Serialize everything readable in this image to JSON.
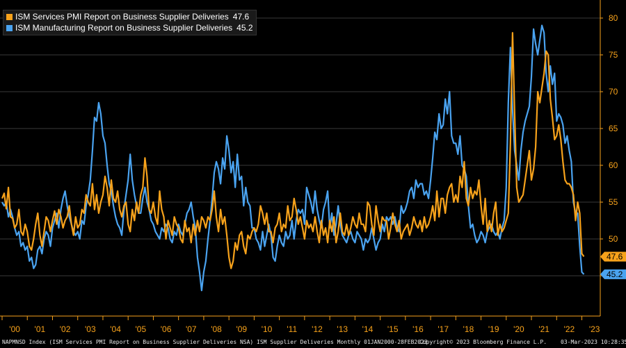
{
  "legend": [
    {
      "name": "ISM Services PMI Report on Business Supplier Deliveries",
      "last": "47.6",
      "color": "#f7a21b"
    },
    {
      "name": "ISM Manufacturing Report on Business Supplier Deliveries",
      "last": "45.2",
      "color": "#4aa3f0"
    }
  ],
  "footer": {
    "left": "NAPMNSD Index (ISM Services PMI Report on Business Supplier Deliveries NSA) ISM Supplier Deliveries  Monthly 01JAN2000-28FEB2023",
    "center": "Copyright© 2023 Bloomberg Finance L.P.",
    "right": "03-Mar-2023 10:28:35"
  },
  "chart_data": {
    "type": "line",
    "x_start": "2000-01",
    "x_end": "2023-02",
    "x_tick_labels": [
      "'00",
      "'01",
      "'02",
      "'03",
      "'04",
      "'05",
      "'06",
      "'07",
      "'08",
      "'09",
      "'10",
      "'11",
      "'12",
      "'13",
      "'14",
      "'15",
      "'16",
      "'17",
      "'18",
      "'19",
      "'20",
      "'21",
      "'22",
      "'23"
    ],
    "y_ticks": [
      45,
      50,
      55,
      60,
      65,
      70,
      75,
      80
    ],
    "ylim": [
      40,
      82
    ],
    "grid": true,
    "y_axis_side": "right",
    "legend_position": "top-left",
    "series": [
      {
        "name": "ISM Services PMI Report on Business Supplier Deliveries",
        "color": "#f7a21b",
        "last_label": "47.6",
        "values": [
          55.5,
          56.2,
          54.1,
          57.0,
          53.0,
          52.8,
          51.5,
          52.0,
          54.0,
          51.0,
          50.5,
          52.0,
          51.0,
          49.0,
          48.5,
          50.0,
          52.0,
          53.5,
          50.5,
          49.0,
          51.0,
          53.0,
          52.5,
          51.0,
          52.5,
          53.8,
          52.0,
          54.0,
          53.0,
          51.5,
          52.5,
          53.0,
          54.5,
          52.0,
          50.5,
          53.0,
          51.5,
          52.0,
          54.0,
          53.5,
          56.0,
          55.0,
          54.5,
          57.5,
          54.0,
          56.0,
          53.5,
          55.0,
          56.0,
          58.5,
          57.0,
          54.5,
          58.0,
          55.5,
          55.0,
          56.5,
          54.0,
          53.0,
          54.5,
          55.0,
          52.0,
          51.0,
          54.0,
          52.5,
          55.0,
          53.5,
          56.0,
          57.0,
          61.0,
          58.5,
          54.0,
          53.5,
          55.0,
          53.0,
          52.0,
          56.5,
          54.0,
          53.0,
          50.0,
          52.5,
          51.5,
          50.5,
          53.0,
          52.0,
          51.5,
          50.0,
          49.5,
          52.5,
          51.0,
          51.5,
          49.5,
          52.0,
          50.5,
          52.5,
          51.0,
          53.0,
          52.5,
          51.5,
          53.0,
          52.5,
          54.0,
          56.5,
          53.0,
          51.0,
          54.0,
          52.0,
          53.0,
          50.5,
          47.5,
          46.0,
          47.0,
          49.5,
          48.5,
          50.5,
          51.0,
          49.0,
          48.0,
          50.5,
          50.0,
          51.0,
          51.5,
          51.0,
          52.0,
          54.5,
          53.5,
          52.0,
          53.5,
          51.0,
          51.0,
          49.5,
          51.5,
          52.0,
          53.5,
          51.0,
          52.0,
          51.5,
          54.5,
          52.5,
          53.0,
          55.5,
          54.0,
          52.0,
          53.0,
          51.5,
          50.0,
          52.5,
          51.5,
          52.0,
          51.0,
          53.0,
          51.0,
          49.5,
          52.5,
          50.5,
          51.5,
          49.5,
          52.5,
          51.0,
          53.0,
          49.5,
          51.0,
          53.5,
          51.0,
          50.5,
          52.0,
          50.5,
          51.5,
          53.0,
          52.0,
          51.5,
          53.5,
          52.0,
          52.0,
          51.0,
          55.0,
          54.5,
          52.0,
          50.5,
          54.5,
          52.5,
          51.0,
          53.0,
          52.5,
          52.5,
          50.0,
          51.5,
          53.5,
          52.0,
          51.0,
          52.5,
          50.0,
          51.0,
          51.5,
          52.0,
          50.5,
          51.5,
          53.0,
          52.0,
          51.5,
          52.5,
          51.0,
          53.0,
          51.5,
          52.0,
          53.0,
          54.5,
          52.5,
          56.5,
          53.0,
          55.5,
          55.5,
          53.5,
          56.0,
          57.0,
          57.5,
          55.0,
          56.0,
          55.0,
          58.5,
          57.0,
          60.5,
          55.5,
          54.5,
          57.0,
          55.5,
          56.5,
          56.0,
          58.0,
          54.5,
          52.0,
          55.5,
          51.0,
          52.5,
          51.0,
          53.5,
          55.0,
          50.5,
          52.0,
          51.0,
          51.5,
          52.5,
          53.5,
          63.0,
          78.0,
          67.0,
          57.0,
          55.0,
          55.5,
          56.0,
          58.0,
          60.0,
          62.0,
          58.0,
          59.5,
          62.5,
          70.0,
          68.5,
          70.5,
          72.5,
          75.5,
          75.0,
          69.0,
          66.5,
          63.5,
          64.0,
          65.5,
          63.5,
          60.5,
          58.0,
          57.5,
          57.5,
          57.0,
          56.0,
          52.5,
          55.0,
          53.5,
          48.0,
          47.6
        ]
      },
      {
        "name": "ISM Manufacturing Report on Business Supplier Deliveries",
        "color": "#4aa3f0",
        "last_label": "45.2",
        "values": [
          55.0,
          54.5,
          55.0,
          53.0,
          54.0,
          53.0,
          51.5,
          50.5,
          51.0,
          49.0,
          49.5,
          48.5,
          49.0,
          47.0,
          47.5,
          46.0,
          46.5,
          48.5,
          49.0,
          48.0,
          50.0,
          51.0,
          50.5,
          49.0,
          51.5,
          52.5,
          53.5,
          51.5,
          54.0,
          55.5,
          56.5,
          54.5,
          53.0,
          52.0,
          51.0,
          50.5,
          51.0,
          50.0,
          52.5,
          52.0,
          54.5,
          56.0,
          58.0,
          62.0,
          66.5,
          66.0,
          68.5,
          67.0,
          64.0,
          63.0,
          60.0,
          57.5,
          56.5,
          54.5,
          53.0,
          52.0,
          51.5,
          50.5,
          54.0,
          56.0,
          58.0,
          61.5,
          58.0,
          56.0,
          54.5,
          53.5,
          53.5,
          55.5,
          57.0,
          55.0,
          54.0,
          52.5,
          52.0,
          51.0,
          50.5,
          50.0,
          51.5,
          51.0,
          52.0,
          51.5,
          50.0,
          49.5,
          51.0,
          50.5,
          52.0,
          51.0,
          50.5,
          52.0,
          53.5,
          54.0,
          55.0,
          53.0,
          51.5,
          47.5,
          45.5,
          43.0,
          45.5,
          47.0,
          50.0,
          52.5,
          55.5,
          59.0,
          60.5,
          59.5,
          57.5,
          61.0,
          59.5,
          64.0,
          62.0,
          59.0,
          60.5,
          57.0,
          61.5,
          58.0,
          58.5,
          54.5,
          57.0,
          55.0,
          54.5,
          51.5,
          51.5,
          50.0,
          49.5,
          48.5,
          51.0,
          49.0,
          50.5,
          52.0,
          50.5,
          47.5,
          47.0,
          49.0,
          50.5,
          49.5,
          49.0,
          51.0,
          50.0,
          50.5,
          52.5,
          50.0,
          52.5,
          54.0,
          53.5,
          54.0,
          52.0,
          57.0,
          56.0,
          55.0,
          53.5,
          56.5,
          54.0,
          52.5,
          51.5,
          54.0,
          55.0,
          56.5,
          51.5,
          53.5,
          50.5,
          52.0,
          54.5,
          52.0,
          50.5,
          50.0,
          49.5,
          50.5,
          51.0,
          50.0,
          49.5,
          51.0,
          50.5,
          50.0,
          48.5,
          50.0,
          49.5,
          50.0,
          51.5,
          50.0,
          48.5,
          49.5,
          50.0,
          52.0,
          51.0,
          53.0,
          52.5,
          53.0,
          52.0,
          53.0,
          51.5,
          51.0,
          54.5,
          53.5,
          54.0,
          55.0,
          56.5,
          57.0,
          55.5,
          58.0,
          57.0,
          57.5,
          57.5,
          56.0,
          56.5,
          55.5,
          58.0,
          61.0,
          64.5,
          63.5,
          67.0,
          65.0,
          65.5,
          69.0,
          67.0,
          70.0,
          64.0,
          63.0,
          63.0,
          61.5,
          64.0,
          60.0,
          59.5,
          58.5,
          54.5,
          51.5,
          52.0,
          50.5,
          49.5,
          50.0,
          51.0,
          50.5,
          49.5,
          51.0,
          51.5,
          52.0,
          51.0,
          50.5,
          51.0,
          50.0,
          51.5,
          52.5,
          57.0,
          68.5,
          76.0,
          67.5,
          62.0,
          60.0,
          58.0,
          62.0,
          64.5,
          66.0,
          67.0,
          68.0,
          72.0,
          78.5,
          76.5,
          75.0,
          77.0,
          79.0,
          78.0,
          72.5,
          70.0,
          73.5,
          71.0,
          72.5,
          66.0,
          67.0,
          66.5,
          65.5,
          63.0,
          64.0,
          62.0,
          60.5,
          55.0,
          53.5,
          53.5,
          49.0,
          45.5,
          45.2
        ]
      }
    ]
  }
}
